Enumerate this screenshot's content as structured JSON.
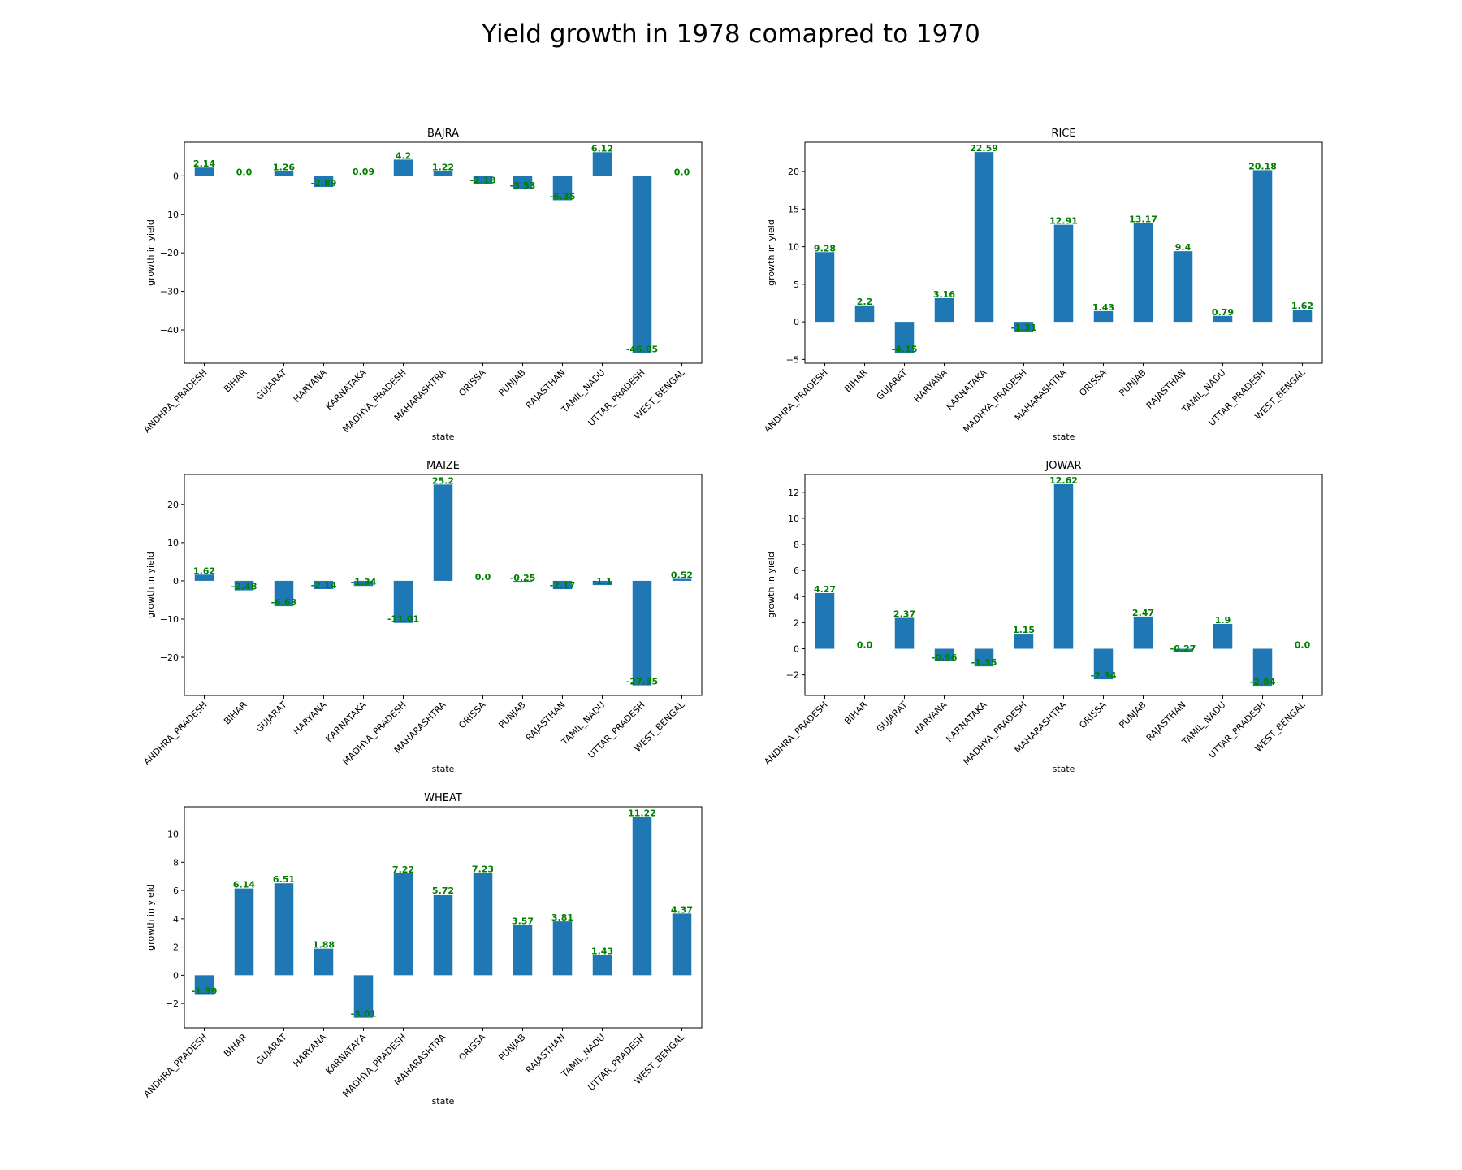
{
  "figure": {
    "title": "Yield growth in 1978 comapred to 1970",
    "bar_color": "#1f77b4",
    "label_color": "#008000"
  },
  "chart_data": [
    {
      "type": "bar",
      "title": "BAJRA",
      "xlabel": "state",
      "ylabel": "growth in yield",
      "categories": [
        "ANDHRA_PRADESH",
        "BIHAR",
        "GUJARAT",
        "HARYANA",
        "KARNATAKA",
        "MADHYA_PRADESH",
        "MAHARASHTRA",
        "ORISSA",
        "PUNJAB",
        "RAJASTHAN",
        "TAMIL_NADU",
        "UTTAR_PRADESH",
        "WEST_BENGAL"
      ],
      "values": [
        2.14,
        0.0,
        1.26,
        -2.89,
        0.09,
        4.2,
        1.22,
        -2.18,
        -3.53,
        -6.35,
        6.12,
        -46.05,
        0.0
      ],
      "value_labels": [
        "2.14",
        "0.0",
        "1.26",
        "-2.89",
        "0.09",
        "4.2",
        "1.22",
        "-2.18",
        "-3.53",
        "-6.35",
        "6.12",
        "-46.05",
        "0.0"
      ],
      "ylim": [
        -48.65,
        8.72
      ],
      "yticks": [
        0,
        -10,
        -20,
        -30,
        -40
      ],
      "ytick_labels": [
        "0",
        "−10",
        "−20",
        "−30",
        "−40"
      ]
    },
    {
      "type": "bar",
      "title": "RICE",
      "xlabel": "state",
      "ylabel": "growth in yield",
      "categories": [
        "ANDHRA_PRADESH",
        "BIHAR",
        "GUJARAT",
        "HARYANA",
        "KARNATAKA",
        "MADHYA_PRADESH",
        "MAHARASHTRA",
        "ORISSA",
        "PUNJAB",
        "RAJASTHAN",
        "TAMIL_NADU",
        "UTTAR_PRADESH",
        "WEST_BENGAL"
      ],
      "values": [
        9.28,
        2.2,
        -4.15,
        3.16,
        22.59,
        -1.31,
        12.91,
        1.43,
        13.17,
        9.4,
        0.79,
        20.18,
        1.62
      ],
      "value_labels": [
        "9.28",
        "2.2",
        "-4.15",
        "3.16",
        "22.59",
        "-1.31",
        "12.91",
        "1.43",
        "13.17",
        "9.4",
        "0.79",
        "20.18",
        "1.62"
      ],
      "ylim": [
        -5.5,
        23.9
      ],
      "yticks": [
        20,
        15,
        10,
        5,
        0,
        -5
      ],
      "ytick_labels": [
        "20",
        "15",
        "10",
        "5",
        "0",
        "−5"
      ]
    },
    {
      "type": "bar",
      "title": "MAIZE",
      "xlabel": "state",
      "ylabel": "growth in yield",
      "categories": [
        "ANDHRA_PRADESH",
        "BIHAR",
        "GUJARAT",
        "HARYANA",
        "KARNATAKA",
        "MADHYA_PRADESH",
        "MAHARASHTRA",
        "ORISSA",
        "PUNJAB",
        "RAJASTHAN",
        "TAMIL_NADU",
        "UTTAR_PRADESH",
        "WEST_BENGAL"
      ],
      "values": [
        1.62,
        -2.48,
        -6.63,
        -2.14,
        -1.34,
        -11.01,
        25.2,
        0.0,
        -0.25,
        -2.17,
        -1.1,
        -27.35,
        0.52
      ],
      "value_labels": [
        "1.62",
        "-2.48",
        "-6.63",
        "-2.14",
        "-1.34",
        "-11.01",
        "25.2",
        "0.0",
        "-0.25",
        "-2.17",
        "-1.1",
        "-27.35",
        "0.52"
      ],
      "ylim": [
        -29.98,
        27.82
      ],
      "yticks": [
        20,
        10,
        0,
        -10,
        -20
      ],
      "ytick_labels": [
        "20",
        "10",
        "0",
        "−10",
        "−20"
      ]
    },
    {
      "type": "bar",
      "title": "JOWAR",
      "xlabel": "state",
      "ylabel": "growth in yield",
      "categories": [
        "ANDHRA_PRADESH",
        "BIHAR",
        "GUJARAT",
        "HARYANA",
        "KARNATAKA",
        "MADHYA_PRADESH",
        "MAHARASHTRA",
        "ORISSA",
        "PUNJAB",
        "RAJASTHAN",
        "TAMIL_NADU",
        "UTTAR_PRADESH",
        "WEST_BENGAL"
      ],
      "values": [
        4.27,
        0.0,
        2.37,
        -0.96,
        -1.35,
        1.15,
        12.62,
        -2.34,
        2.47,
        -0.27,
        1.9,
        -2.84,
        0.0
      ],
      "value_labels": [
        "4.27",
        "0.0",
        "2.37",
        "-0.96",
        "-1.35",
        "1.15",
        "12.62",
        "-2.34",
        "2.47",
        "-0.27",
        "1.9",
        "-2.84",
        "0.0"
      ],
      "ylim": [
        -3.58,
        13.36
      ],
      "yticks": [
        12,
        10,
        8,
        6,
        4,
        2,
        0,
        -2
      ],
      "ytick_labels": [
        "12",
        "10",
        "8",
        "6",
        "4",
        "2",
        "0",
        "−2"
      ]
    },
    {
      "type": "bar",
      "title": "WHEAT",
      "xlabel": "state",
      "ylabel": "growth in yield",
      "categories": [
        "ANDHRA_PRADESH",
        "BIHAR",
        "GUJARAT",
        "HARYANA",
        "KARNATAKA",
        "MADHYA_PRADESH",
        "MAHARASHTRA",
        "ORISSA",
        "PUNJAB",
        "RAJASTHAN",
        "TAMIL_NADU",
        "UTTAR_PRADESH",
        "WEST_BENGAL"
      ],
      "values": [
        -1.39,
        6.14,
        6.51,
        1.88,
        -3.01,
        7.22,
        5.72,
        7.23,
        3.57,
        3.81,
        1.43,
        11.22,
        4.37
      ],
      "value_labels": [
        "-1.39",
        "6.14",
        "6.51",
        "1.88",
        "-3.01",
        "7.22",
        "5.72",
        "7.23",
        "3.57",
        "3.81",
        "1.43",
        "11.22",
        "4.37"
      ],
      "ylim": [
        -3.72,
        11.93
      ],
      "yticks": [
        10,
        8,
        6,
        4,
        2,
        0,
        -2
      ],
      "ytick_labels": [
        "10",
        "8",
        "6",
        "4",
        "2",
        "0",
        "−2"
      ]
    }
  ]
}
